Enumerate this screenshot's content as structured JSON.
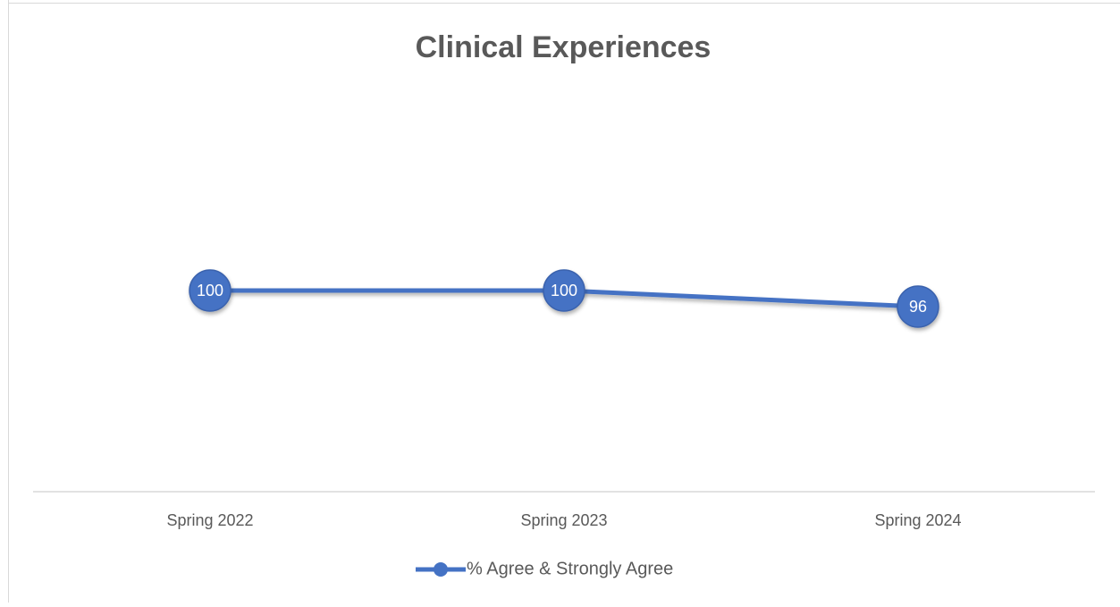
{
  "chart_data": {
    "type": "line",
    "title": "Clinical Experiences",
    "categories": [
      "Spring 2022",
      "Spring 2023",
      "Spring 2024"
    ],
    "series": [
      {
        "name": "% Agree & Strongly Agree",
        "color": "#4472c4",
        "values": [
          100,
          100,
          96
        ]
      }
    ],
    "ylim": [
      50,
      150
    ],
    "legend": "bottom"
  }
}
